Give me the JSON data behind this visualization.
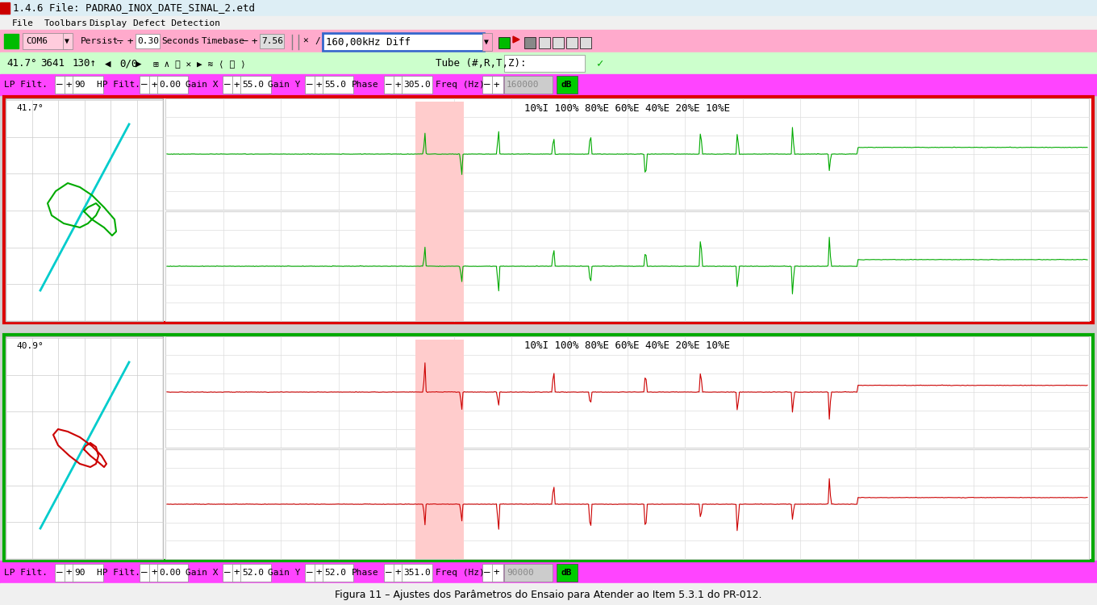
{
  "title_bar": "1.4.6 File: PADRAO_INOX_DATE_SINAL_2.etd",
  "menu_items": [
    "File",
    "Toolbars",
    "Display",
    "Defect Detection"
  ],
  "toolbar1": {
    "com": "COM6",
    "persist": "0.30",
    "seconds": "Seconds",
    "timebase": "7.56",
    "freq_label": "160,00kHz Diff"
  },
  "toolbar2": {
    "angle": "41.7°",
    "val1": "3641",
    "val2": "130↑",
    "nav": "0/0",
    "tube": "Tube (#,R,T,Z):"
  },
  "toolbar3_top": {
    "lp_filt": "90",
    "hp_filt": "0.00",
    "gain_x": "55.0",
    "gain_y": "55.0",
    "phase": "305.0",
    "freq_hz": "160000",
    "db": "dB"
  },
  "toolbar3_bot": {
    "lp_filt": "90",
    "hp_filt": "0.00",
    "gain_x": "52.0",
    "gain_y": "52.0",
    "phase": "351.0",
    "freq_hz": "90000",
    "db": "dB"
  },
  "colors": {
    "title_bg": "#e8f4f8",
    "title_red": "#cc0000",
    "menu_bg": "#f0f0f0",
    "toolbar_pink": "#ff99cc",
    "toolbar_green": "#99ff99",
    "toolbar_magenta": "#ff44ff",
    "panel_bg": "#ffffff",
    "green_signal": "#00aa00",
    "red_signal": "#cc0000",
    "cyan_line": "#00cccc",
    "pink_highlight": "#ffbbbb",
    "border_red": "#dd0000",
    "border_green": "#00aa00",
    "lissajous_bg": "#ffffff",
    "signal_bg": "#ffffff"
  },
  "annotation_text": "10%I 100% 80%E 60%E 40%E 20%E 10%E",
  "angle_top": "41.7°",
  "angle_bot": "40.9°"
}
